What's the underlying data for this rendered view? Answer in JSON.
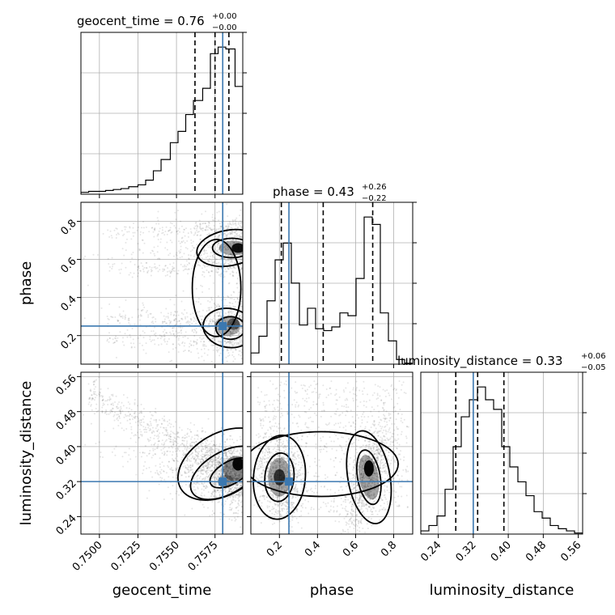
{
  "chart_data": {
    "type": "corner",
    "parameters": [
      "geocent_time",
      "phase",
      "luminosity_distance"
    ],
    "colors": {
      "truth": "#3b78b0",
      "hist": "#000000",
      "grid": "#b0b0b0",
      "density": "#000000"
    },
    "grid": true,
    "truths": {
      "geocent_time": 0.758,
      "phase": 0.25,
      "luminosity_distance": 0.32
    },
    "ranges": {
      "geocent_time": [
        0.7488,
        0.7593
      ],
      "phase": [
        0.05,
        0.9
      ],
      "luminosity_distance": [
        0.2,
        0.57
      ]
    },
    "ticks": {
      "geocent_time": [
        "0.7500",
        "0.7525",
        "0.7550",
        "0.7575"
      ],
      "phase": [
        "0.2",
        "0.4",
        "0.6",
        "0.8"
      ],
      "luminosity_distance": [
        "0.24",
        "0.32",
        "0.40",
        "0.48",
        "0.56"
      ]
    },
    "titles": {
      "geocent_time": {
        "prefix": "geocent_time = 0.76",
        "sup": "+0.00",
        "sub": "−0.00"
      },
      "phase": {
        "prefix": "phase = 0.43",
        "sup": "+0.26",
        "sub": "−0.22"
      },
      "luminosity_distance": {
        "prefix": "luminosity_distance = 0.33",
        "sup": "+0.06",
        "sub": "−0.05"
      }
    },
    "quantiles": {
      "geocent_time": [
        0.7562,
        0.7575,
        0.7584
      ],
      "phase": [
        0.21,
        0.43,
        0.69
      ],
      "luminosity_distance": [
        0.28,
        0.33,
        0.39
      ]
    },
    "histograms": {
      "geocent_time": {
        "edges": [
          0.7488,
          0.7493,
          0.7498,
          0.7504,
          0.7509,
          0.7514,
          0.7519,
          0.7525,
          0.753,
          0.7535,
          0.754,
          0.7546,
          0.7551,
          0.7556,
          0.7561,
          0.7567,
          0.7572,
          0.7577,
          0.7582,
          0.7588,
          0.7593
        ],
        "counts": [
          2,
          3,
          3,
          4,
          5,
          6,
          8,
          10,
          15,
          25,
          37,
          55,
          67,
          85,
          100,
          113,
          150,
          157,
          155,
          115
        ]
      },
      "phase": {
        "edges": [
          0.05,
          0.0925,
          0.135,
          0.1775,
          0.22,
          0.2625,
          0.305,
          0.3475,
          0.39,
          0.4325,
          0.475,
          0.5175,
          0.56,
          0.6025,
          0.645,
          0.6875,
          0.73,
          0.7725,
          0.815,
          0.8575,
          0.9
        ],
        "counts": [
          12,
          30,
          68,
          112,
          130,
          87,
          42,
          60,
          38,
          36,
          40,
          55,
          52,
          92,
          158,
          150,
          55,
          25,
          5,
          1
        ]
      },
      "luminosity_distance": {
        "edges": [
          0.2,
          0.2185,
          0.237,
          0.2555,
          0.274,
          0.2925,
          0.311,
          0.3295,
          0.348,
          0.3665,
          0.385,
          0.4035,
          0.422,
          0.4405,
          0.459,
          0.4775,
          0.496,
          0.5145,
          0.533,
          0.5515,
          0.57
        ],
        "counts": [
          3,
          8,
          17,
          42,
          82,
          110,
          126,
          138,
          126,
          117,
          82,
          63,
          49,
          36,
          21,
          15,
          8,
          5,
          3,
          1
        ]
      }
    }
  }
}
